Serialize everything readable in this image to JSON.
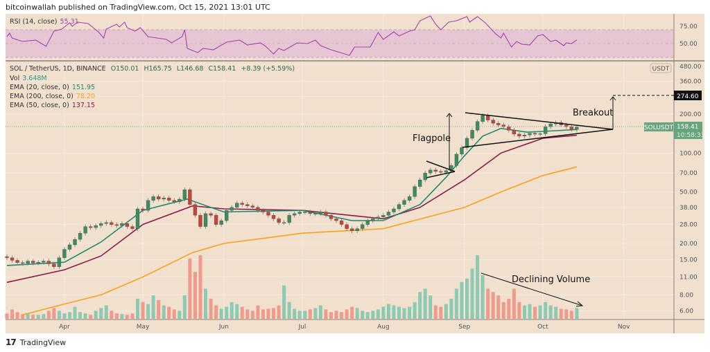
{
  "header": {
    "published": "bitcoinwallah published on TradingView.com, Oct 15, 2021 13:01 UTC"
  },
  "footer": {
    "brand": "TradingView"
  },
  "rsi_legend": {
    "label": "RSI (14, close)",
    "value": "55.31"
  },
  "price_legend": {
    "symbol": "SOL / TetherUS, 1D, BINANCE",
    "open": "O150.01",
    "high": "H165.75",
    "low": "L146.68",
    "close": "C158.41",
    "change": "+8.39 (+5.59%)",
    "vol_label": "Vol",
    "vol_value": "3.648M",
    "ema20_label": "EMA (20, close, 0)",
    "ema20_value": "151.95",
    "ema200_label": "EMA (200, close, 0)",
    "ema200_value": "78.20",
    "ema50_label": "EMA (50, close, 0)",
    "ema50_value": "137.15"
  },
  "annotations": {
    "flagpole": "Flagpole",
    "breakout": "Breakout",
    "declining_volume": "Declining Volume"
  },
  "price_axis": {
    "unit": "USDT",
    "target_label": "274.60",
    "symbol_tag": "SOLUSDT",
    "last_price": "158.41",
    "countdown": "10:58:33"
  },
  "colors": {
    "background": "#f1e0ce",
    "up": "#3d8c60",
    "down": "#c1463a",
    "vol_up": "#8ccab4",
    "vol_down": "#f09a8c",
    "ema20": "#1e8a70",
    "ema50": "#8a1a4c",
    "ema200": "#f7a21b",
    "rsi": "#a53fb5",
    "rsi_band": "#e6c6d2"
  },
  "chart_data": {
    "type": "candlestick",
    "scale": "log",
    "grid": true,
    "price_ticks": [
      480,
      360,
      274.6,
      200,
      100,
      70,
      50,
      38,
      28,
      20,
      15,
      11,
      8,
      6
    ],
    "price_tick_labels": [
      "480.00",
      "360.00",
      "",
      "200.00",
      "100.00",
      "70.00",
      "50.00",
      "38.00",
      "28.00",
      "20.00",
      "15.00",
      "11.00",
      "8.00",
      "6.00"
    ],
    "x_ticks": [
      {
        "label": "Apr",
        "date": "2021-04-01"
      },
      {
        "label": "May",
        "date": "2021-05-01"
      },
      {
        "label": "Jun",
        "date": "2021-06-01"
      },
      {
        "label": "Jul",
        "date": "2021-07-01"
      },
      {
        "label": "Aug",
        "date": "2021-08-01"
      },
      {
        "label": "Sep",
        "date": "2021-09-01"
      },
      {
        "label": "Oct",
        "date": "2021-10-01"
      },
      {
        "label": "Nov",
        "date": "2021-11-01"
      }
    ],
    "closes": [
      15.5,
      14.8,
      14.2,
      14.0,
      14.6,
      14.1,
      14.3,
      14.6,
      13.9,
      13.2,
      15.5,
      18.0,
      19.5,
      21.5,
      24,
      27,
      26.5,
      27.5,
      28.5,
      29,
      28,
      27.5,
      28.5,
      27,
      26,
      37,
      36,
      43,
      46,
      44,
      45,
      43,
      42,
      44,
      52,
      40,
      33,
      27,
      34,
      33,
      28,
      30,
      36,
      38,
      41,
      40,
      39,
      38,
      36,
      35,
      33,
      31,
      29,
      29,
      33,
      34,
      35,
      35,
      34,
      34,
      35,
      33,
      31,
      30,
      28,
      26,
      25,
      26,
      28,
      30,
      31,
      32,
      33,
      35,
      37,
      40,
      43,
      46,
      55,
      62,
      70,
      74,
      72,
      71,
      73,
      80,
      98,
      110,
      130,
      150,
      175,
      195,
      180,
      170,
      165,
      160,
      150,
      140,
      135,
      138,
      142,
      140,
      141,
      160,
      168,
      172,
      165,
      160,
      152,
      158.41
    ],
    "volumes": [
      8,
      14,
      10,
      7,
      8,
      6,
      6,
      7,
      12,
      16,
      12,
      8,
      10,
      18,
      10,
      8,
      6,
      12,
      16,
      20,
      12,
      8,
      7,
      6,
      8,
      30,
      25,
      22,
      35,
      28,
      20,
      18,
      14,
      12,
      35,
      90,
      70,
      95,
      45,
      30,
      20,
      15,
      18,
      25,
      22,
      18,
      14,
      12,
      20,
      14,
      15,
      16,
      20,
      50,
      25,
      15,
      12,
      12,
      14,
      16,
      20,
      14,
      10,
      12,
      10,
      14,
      18,
      16,
      12,
      10,
      12,
      14,
      18,
      22,
      20,
      18,
      16,
      18,
      25,
      40,
      45,
      35,
      20,
      18,
      22,
      30,
      45,
      55,
      60,
      75,
      95,
      65,
      45,
      40,
      35,
      25,
      30,
      45,
      25,
      20,
      22,
      18,
      20,
      25,
      20,
      18,
      15,
      14,
      12,
      16
    ],
    "ema20": [
      [
        "2021-03-10",
        13.5
      ],
      [
        "2021-04-01",
        14.3
      ],
      [
        "2021-04-15",
        20.5
      ],
      [
        "2021-05-01",
        36
      ],
      [
        "2021-05-18",
        44
      ],
      [
        "2021-06-01",
        35
      ],
      [
        "2021-07-01",
        36
      ],
      [
        "2021-07-20",
        30
      ],
      [
        "2021-08-01",
        30
      ],
      [
        "2021-08-15",
        40
      ],
      [
        "2021-08-25",
        65
      ],
      [
        "2021-09-01",
        95
      ],
      [
        "2021-09-08",
        135
      ],
      [
        "2021-09-15",
        155
      ],
      [
        "2021-09-25",
        145
      ],
      [
        "2021-10-01",
        147
      ],
      [
        "2021-10-14",
        151.95
      ]
    ],
    "ema50": [
      [
        "2021-03-10",
        10
      ],
      [
        "2021-04-01",
        12.5
      ],
      [
        "2021-04-15",
        16
      ],
      [
        "2021-05-01",
        28
      ],
      [
        "2021-05-20",
        39
      ],
      [
        "2021-06-01",
        37
      ],
      [
        "2021-07-01",
        36
      ],
      [
        "2021-08-01",
        31
      ],
      [
        "2021-08-15",
        38
      ],
      [
        "2021-09-01",
        62
      ],
      [
        "2021-09-15",
        100
      ],
      [
        "2021-10-01",
        130
      ],
      [
        "2021-10-14",
        137.15
      ]
    ],
    "ema200": [
      [
        "2021-03-16",
        5.6
      ],
      [
        "2021-04-01",
        6.8
      ],
      [
        "2021-04-15",
        8
      ],
      [
        "2021-05-01",
        11
      ],
      [
        "2021-05-20",
        17
      ],
      [
        "2021-06-01",
        20
      ],
      [
        "2021-07-01",
        24
      ],
      [
        "2021-08-01",
        26
      ],
      [
        "2021-09-01",
        38
      ],
      [
        "2021-09-15",
        50
      ],
      [
        "2021-10-01",
        67
      ],
      [
        "2021-10-14",
        78.2
      ]
    ],
    "rsi_ticks": [
      75,
      50
    ],
    "rsi": [
      [
        "2021-03-10",
        60
      ],
      [
        "2021-03-11",
        65
      ],
      [
        "2021-03-12",
        58
      ],
      [
        "2021-03-16",
        53
      ],
      [
        "2021-03-21",
        55
      ],
      [
        "2021-03-25",
        46
      ],
      [
        "2021-03-28",
        68
      ],
      [
        "2021-03-31",
        71
      ],
      [
        "2021-04-03",
        80
      ],
      [
        "2021-04-04",
        75
      ],
      [
        "2021-04-06",
        81
      ],
      [
        "2021-04-10",
        79
      ],
      [
        "2021-04-14",
        67
      ],
      [
        "2021-04-16",
        58
      ],
      [
        "2021-04-17",
        71
      ],
      [
        "2021-04-21",
        78
      ],
      [
        "2021-04-22",
        74
      ],
      [
        "2021-04-24",
        81
      ],
      [
        "2021-04-25",
        73
      ],
      [
        "2021-04-28",
        68
      ],
      [
        "2021-04-30",
        73
      ],
      [
        "2021-05-03",
        60
      ],
      [
        "2021-05-10",
        56
      ],
      [
        "2021-05-12",
        51
      ],
      [
        "2021-05-16",
        60
      ],
      [
        "2021-05-17",
        70
      ],
      [
        "2021-05-18",
        43
      ],
      [
        "2021-05-22",
        37
      ],
      [
        "2021-05-24",
        43
      ],
      [
        "2021-05-28",
        41
      ],
      [
        "2021-06-02",
        52
      ],
      [
        "2021-06-07",
        55
      ],
      [
        "2021-06-10",
        48
      ],
      [
        "2021-06-15",
        51
      ],
      [
        "2021-06-17",
        46
      ],
      [
        "2021-06-20",
        35
      ],
      [
        "2021-06-22",
        43
      ],
      [
        "2021-06-24",
        40
      ],
      [
        "2021-06-29",
        51
      ],
      [
        "2021-07-03",
        50
      ],
      [
        "2021-07-06",
        55
      ],
      [
        "2021-07-08",
        47
      ],
      [
        "2021-07-12",
        41
      ],
      [
        "2021-07-19",
        33
      ],
      [
        "2021-07-21",
        45
      ],
      [
        "2021-07-27",
        45
      ],
      [
        "2021-07-30",
        66
      ],
      [
        "2021-08-01",
        56
      ],
      [
        "2021-08-05",
        67
      ],
      [
        "2021-08-07",
        61
      ],
      [
        "2021-08-11",
        68
      ],
      [
        "2021-08-13",
        70
      ],
      [
        "2021-08-15",
        83
      ],
      [
        "2021-08-19",
        90
      ],
      [
        "2021-08-21",
        78
      ],
      [
        "2021-08-23",
        70
      ],
      [
        "2021-08-26",
        81
      ],
      [
        "2021-08-29",
        83
      ],
      [
        "2021-09-02",
        89
      ],
      [
        "2021-09-03",
        81
      ],
      [
        "2021-09-06",
        89
      ],
      [
        "2021-09-09",
        80
      ],
      [
        "2021-09-13",
        64
      ],
      [
        "2021-09-15",
        58
      ],
      [
        "2021-09-16",
        65
      ],
      [
        "2021-09-19",
        45
      ],
      [
        "2021-09-21",
        53
      ],
      [
        "2021-09-23",
        49
      ],
      [
        "2021-09-26",
        48
      ],
      [
        "2021-09-29",
        61
      ],
      [
        "2021-10-01",
        63
      ],
      [
        "2021-10-04",
        53
      ],
      [
        "2021-10-06",
        55
      ],
      [
        "2021-10-09",
        47
      ],
      [
        "2021-10-10",
        51
      ],
      [
        "2021-10-12",
        50
      ],
      [
        "2021-10-14",
        55.31
      ]
    ]
  }
}
